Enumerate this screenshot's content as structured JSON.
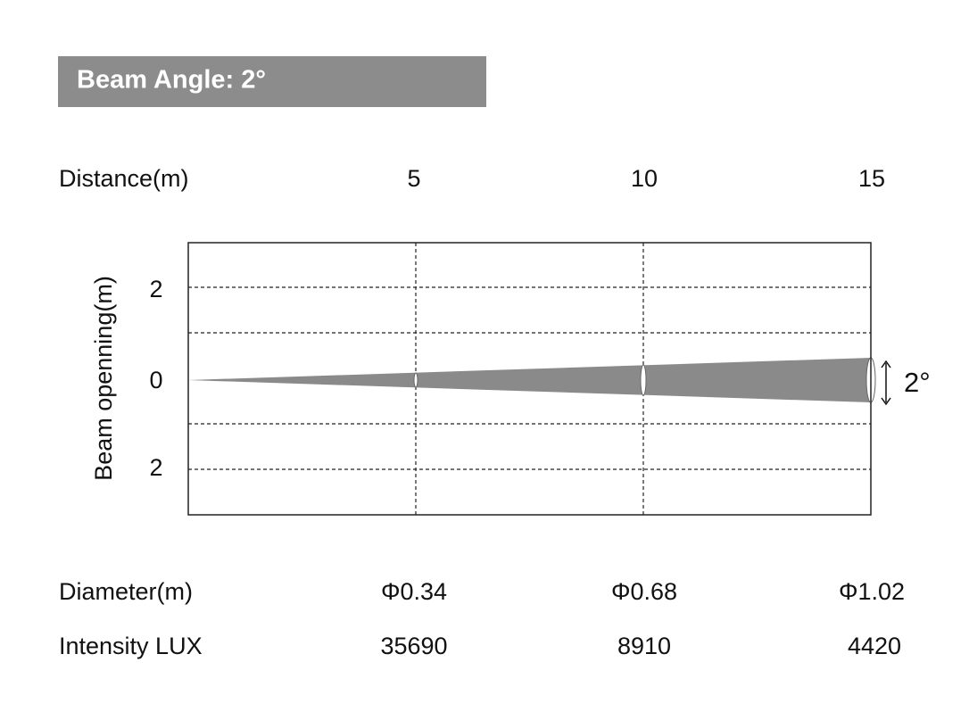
{
  "header": {
    "title": "Beam Angle: 2°"
  },
  "distance": {
    "label": "Distance(m)",
    "values": [
      "5",
      "10",
      "15"
    ]
  },
  "diagram": {
    "y_axis_label": "Beam openning(m)",
    "y_ticks": [
      "2",
      "0",
      "2"
    ],
    "angle_label": "2°"
  },
  "diameter": {
    "label": "Diameter(m)",
    "values": [
      "Φ0.34",
      "Φ0.68",
      "Φ1.02"
    ]
  },
  "intensity": {
    "label": "Intensity LUX",
    "values": [
      "35690",
      "8910",
      "4420"
    ]
  }
}
